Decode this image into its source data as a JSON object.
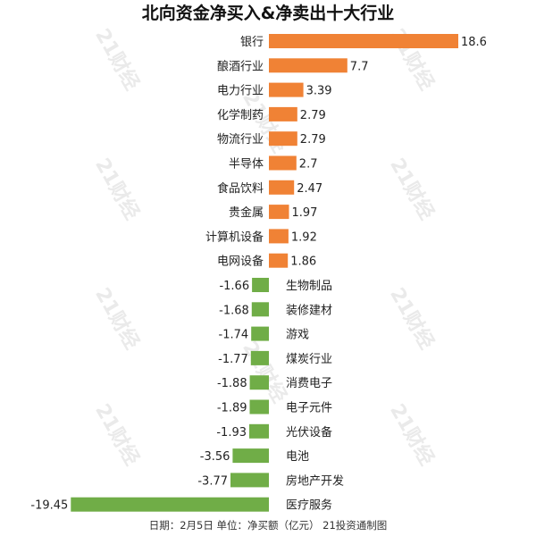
{
  "chart_data": {
    "type": "bar",
    "orientation": "horizontal",
    "title": "北向资金净买入&净卖出十大行业",
    "categories": [
      "银行",
      "酿酒行业",
      "电力行业",
      "化学制药",
      "物流行业",
      "半导体",
      "食品饮料",
      "贵金属",
      "计算机设备",
      "电网设备",
      "生物制品",
      "装修建材",
      "游戏",
      "煤炭行业",
      "消费电子",
      "电子元件",
      "光伏设备",
      "电池",
      "房地产开发",
      "医疗服务"
    ],
    "values": [
      18.6,
      7.7,
      3.39,
      2.79,
      2.79,
      2.7,
      2.47,
      1.97,
      1.92,
      1.86,
      -1.66,
      -1.68,
      -1.74,
      -1.77,
      -1.88,
      -1.89,
      -1.93,
      -3.56,
      -3.77,
      -19.45
    ],
    "value_labels": [
      "18.6",
      "7.7",
      "3.39",
      "2.79",
      "2.79",
      "2.7",
      "2.47",
      "1.97",
      "1.92",
      "1.86",
      "-1.66",
      "-1.68",
      "-1.74",
      "-1.77",
      "-1.88",
      "-1.89",
      "-1.93",
      "-3.56",
      "-3.77",
      "-19.45"
    ],
    "colors": {
      "positive": "#f08235",
      "negative": "#70ad47"
    },
    "grid": false,
    "legend": "none",
    "xlim": [
      -20,
      20
    ]
  },
  "footer": "日期：2月5日 单位：净买额（亿元） 21投资通制图",
  "watermark": "21财经"
}
